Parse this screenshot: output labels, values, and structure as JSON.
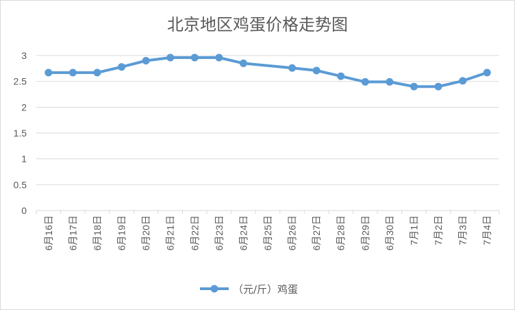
{
  "chart_data": {
    "type": "line",
    "title": "北京地区鸡蛋价格走势图",
    "categories": [
      "6月16日",
      "6月17日",
      "6月18日",
      "6月19日",
      "6月20日",
      "6月21日",
      "6月22日",
      "6月23日",
      "6月24日",
      "6月25日",
      "6月26日",
      "6月27日",
      "6月28日",
      "6月29日",
      "6月30日",
      "7月1日",
      "7月2日",
      "7月3日",
      "7月4日"
    ],
    "series": [
      {
        "name": "（元/斤）鸡蛋",
        "values": [
          2.67,
          2.67,
          2.67,
          2.78,
          2.9,
          2.96,
          2.96,
          2.96,
          2.85,
          null,
          2.76,
          2.71,
          2.6,
          2.49,
          2.49,
          2.4,
          2.4,
          2.51,
          2.67
        ],
        "color": "#5b9bd5"
      }
    ],
    "ylim": [
      0,
      3
    ],
    "yticks": [
      0,
      0.5,
      1,
      1.5,
      2,
      2.5,
      3
    ],
    "ytick_labels": [
      "0",
      "0.5",
      "1",
      "1.5",
      "2",
      "2.5",
      "3"
    ],
    "grid": true,
    "legend": "bottom",
    "connect_missing": true
  }
}
